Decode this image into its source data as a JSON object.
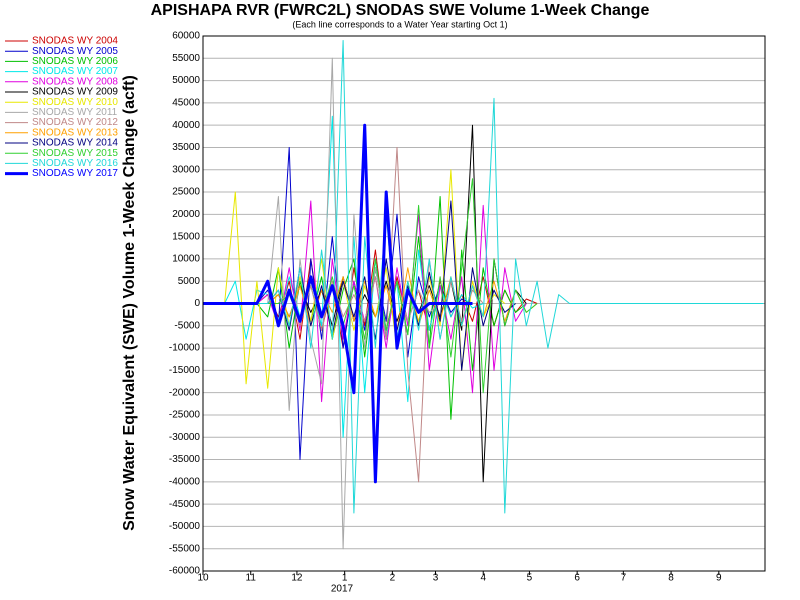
{
  "chart_data": {
    "type": "line",
    "title": "APISHAPA RVR (FWRC2L) SNODAS SWE Volume 1-Week Change",
    "subtitle": "(Each line corresponds to a Water Year starting Oct 1)",
    "y_label": "Snow Water Equivalent (SWE) Volume 1-Week Change (acft)",
    "year_label": "2017",
    "grid": true,
    "legend": "top-left",
    "xlim": [
      0,
      365
    ],
    "xticks": [
      {
        "value": 0,
        "label": "10"
      },
      {
        "value": 31,
        "label": "11"
      },
      {
        "value": 61,
        "label": "12"
      },
      {
        "value": 92,
        "label": "1"
      },
      {
        "value": 123,
        "label": "2"
      },
      {
        "value": 151,
        "label": "3"
      },
      {
        "value": 182,
        "label": "4"
      },
      {
        "value": 212,
        "label": "5"
      },
      {
        "value": 243,
        "label": "6"
      },
      {
        "value": 273,
        "label": "7"
      },
      {
        "value": 304,
        "label": "8"
      },
      {
        "value": 335,
        "label": "9"
      }
    ],
    "ylim": [
      -60000,
      60000
    ],
    "yticks": [
      -60000,
      -55000,
      -50000,
      -45000,
      -40000,
      -35000,
      -30000,
      -25000,
      -20000,
      -15000,
      -10000,
      -5000,
      0,
      5000,
      10000,
      15000,
      20000,
      25000,
      30000,
      35000,
      40000,
      45000,
      50000,
      55000,
      60000
    ],
    "x": [
      0,
      7,
      14,
      21,
      28,
      35,
      42,
      49,
      56,
      63,
      70,
      77,
      84,
      91,
      98,
      105,
      112,
      119,
      126,
      133,
      140,
      147,
      154,
      161,
      168,
      175,
      182,
      189,
      196,
      203,
      210,
      217,
      224,
      231,
      238,
      364
    ],
    "series": [
      {
        "name": "SNODAS WY 2004",
        "color": "#cc0000",
        "width": 1,
        "values": [
          0,
          0,
          0,
          0,
          0,
          0,
          2000,
          -3000,
          5000,
          -8000,
          10000,
          -6000,
          4000,
          -10000,
          8000,
          -5000,
          12000,
          -8000,
          6000,
          -4000,
          3000,
          -6000,
          5000,
          -3000,
          2000,
          -4000,
          6000,
          -5000,
          3000,
          -2000,
          1000,
          0,
          null,
          null,
          null,
          null
        ]
      },
      {
        "name": "SNODAS WY 2005",
        "color": "#0000cc",
        "width": 1,
        "values": [
          0,
          0,
          0,
          0,
          0,
          0,
          3000,
          -5000,
          35000,
          -35000,
          10000,
          -8000,
          15000,
          -10000,
          5000,
          -6000,
          8000,
          -4000,
          20000,
          -12000,
          6000,
          -3000,
          4000,
          -2000,
          1000,
          0,
          null,
          null,
          null,
          null,
          null,
          null,
          null,
          null,
          null,
          null
        ]
      },
      {
        "name": "SNODAS WY 2006",
        "color": "#00c000",
        "width": 1,
        "values": [
          0,
          0,
          0,
          0,
          0,
          0,
          -3000,
          8000,
          -10000,
          5000,
          -4000,
          6000,
          -8000,
          3000,
          10000,
          -12000,
          8000,
          -6000,
          5000,
          -7000,
          15000,
          -10000,
          24000,
          -26000,
          12000,
          -15000,
          8000,
          -5000,
          3000,
          -2000,
          0,
          null,
          null,
          null,
          null,
          null
        ]
      },
      {
        "name": "SNODAS WY 2007",
        "color": "#00e8e8",
        "width": 1,
        "values": [
          0,
          0,
          0,
          5000,
          -8000,
          3000,
          2000,
          -4000,
          6000,
          -3000,
          4000,
          -5000,
          42000,
          -30000,
          15000,
          -20000,
          10000,
          -8000,
          5000,
          -22000,
          12000,
          -6000,
          4000,
          -3000,
          2000,
          -1000,
          0,
          null,
          null,
          null,
          null,
          null,
          null,
          null,
          null,
          null
        ]
      },
      {
        "name": "SNODAS WY 2008",
        "color": "#e000e0",
        "width": 1,
        "values": [
          0,
          0,
          0,
          0,
          0,
          0,
          2000,
          -5000,
          8000,
          -6000,
          23000,
          -22000,
          10000,
          -8000,
          5000,
          -4000,
          6000,
          -10000,
          8000,
          -5000,
          20000,
          -15000,
          4000,
          -8000,
          6000,
          -20000,
          22000,
          -15000,
          8000,
          -4000,
          0,
          null,
          null,
          null,
          null,
          null
        ]
      },
      {
        "name": "SNODAS WY 2009",
        "color": "#000000",
        "width": 1,
        "values": [
          0,
          0,
          0,
          0,
          0,
          0,
          0,
          2000,
          -3000,
          4000,
          -2000,
          3000,
          -5000,
          6000,
          -4000,
          2000,
          -3000,
          5000,
          -4000,
          3000,
          -2000,
          4000,
          -3000,
          5000,
          -6000,
          40000,
          -40000,
          10000,
          -5000,
          3000,
          0,
          null,
          null,
          null,
          null,
          null
        ]
      },
      {
        "name": "SNODAS WY 2010",
        "color": "#e8e800",
        "width": 1,
        "values": [
          0,
          0,
          0,
          25000,
          -18000,
          5000,
          -19000,
          8000,
          -5000,
          6000,
          -4000,
          10000,
          -8000,
          5000,
          -6000,
          4000,
          -3000,
          8000,
          -10000,
          5000,
          -4000,
          6000,
          -5000,
          30000,
          -15000,
          5000,
          -3000,
          2000,
          0,
          null,
          null,
          null,
          null,
          null,
          null,
          null
        ]
      },
      {
        "name": "SNODAS WY 2011",
        "color": "#a8a8a8",
        "width": 1,
        "values": [
          0,
          0,
          0,
          0,
          0,
          0,
          0,
          24000,
          -24000,
          10000,
          -8000,
          -18000,
          55000,
          -55000,
          20000,
          -10000,
          8000,
          -6000,
          5000,
          -4000,
          3000,
          -2000,
          0,
          null,
          null,
          null,
          null,
          null,
          null,
          null,
          null,
          null,
          null,
          null,
          null,
          null
        ]
      },
      {
        "name": "SNODAS WY 2012",
        "color": "#c08888",
        "width": 1,
        "values": [
          0,
          0,
          0,
          0,
          0,
          0,
          0,
          0,
          3000,
          -5000,
          4000,
          -6000,
          5000,
          -3000,
          2000,
          -4000,
          6000,
          -8000,
          35000,
          -15000,
          -40000,
          10000,
          -8000,
          5000,
          -4000,
          3000,
          0,
          null,
          null,
          null,
          null,
          null,
          null,
          null,
          null,
          null
        ]
      },
      {
        "name": "SNODAS WY 2013",
        "color": "#ffa000",
        "width": 1,
        "values": [
          0,
          0,
          0,
          0,
          0,
          0,
          0,
          2000,
          -3000,
          4000,
          -5000,
          3000,
          -2000,
          6000,
          -4000,
          5000,
          -3000,
          4000,
          -6000,
          8000,
          -5000,
          3000,
          -4000,
          6000,
          -5000,
          4000,
          -3000,
          5000,
          -4000,
          3000,
          -2000,
          0,
          null,
          null,
          null,
          null
        ]
      },
      {
        "name": "SNODAS WY 2014",
        "color": "#000080",
        "width": 1,
        "values": [
          0,
          0,
          0,
          0,
          0,
          0,
          0,
          3000,
          -6000,
          8000,
          -5000,
          4000,
          -7000,
          5000,
          -3000,
          6000,
          -8000,
          10000,
          -6000,
          4000,
          -5000,
          7000,
          -4000,
          23000,
          -15000,
          8000,
          -5000,
          3000,
          -2000,
          0,
          null,
          null,
          null,
          null,
          null,
          null
        ]
      },
      {
        "name": "SNODAS WY 2015",
        "color": "#30d030",
        "width": 1,
        "values": [
          0,
          0,
          0,
          0,
          0,
          0,
          0,
          0,
          2000,
          -4000,
          5000,
          -3000,
          6000,
          -5000,
          4000,
          -8000,
          10000,
          -6000,
          5000,
          -7000,
          22000,
          -10000,
          6000,
          -12000,
          8000,
          28000,
          -20000,
          10000,
          -5000,
          3000,
          -2000,
          0,
          null,
          null,
          null,
          null
        ]
      },
      {
        "name": "SNODAS WY 2016",
        "color": "#20d8d8",
        "width": 1,
        "values": [
          0,
          0,
          0,
          0,
          0,
          0,
          0,
          3000,
          -5000,
          8000,
          -10000,
          12000,
          -8000,
          59000,
          -47000,
          15000,
          -10000,
          20000,
          -8000,
          5000,
          -6000,
          10000,
          -8000,
          6000,
          -5000,
          4000,
          -3000,
          46000,
          -47000,
          10000,
          -5000,
          5000,
          -10000,
          2000,
          0,
          0
        ]
      },
      {
        "name": "SNODAS WY 2017",
        "color": "#0000ff",
        "width": 3,
        "values": [
          0,
          0,
          0,
          0,
          0,
          0,
          5000,
          -5000,
          3000,
          -4000,
          6000,
          -3000,
          4000,
          -5000,
          -20000,
          40000,
          -40000,
          25000,
          -10000,
          3000,
          -2000,
          0,
          0,
          0,
          0,
          0,
          null,
          null,
          null,
          null,
          null,
          null,
          null,
          null,
          null,
          null
        ]
      }
    ]
  }
}
